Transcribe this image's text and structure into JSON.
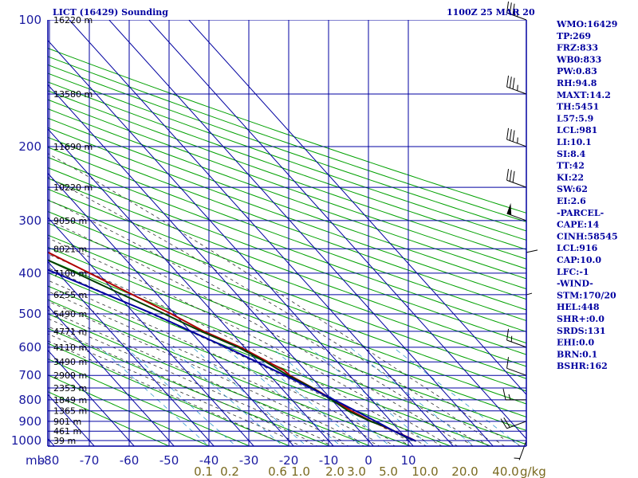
{
  "header": {
    "station": "LICT (16429) Sounding",
    "time": "1100Z 25 MAR 20"
  },
  "colors": {
    "isobar": "#0000a0",
    "isotherm": "#0000a0",
    "dry_adiabat": "#00a000",
    "moist_adiabat": "#303030",
    "mixing_ratio": "#3399cc",
    "temperature": "#b00000",
    "dewpoint": "#004000",
    "parcel": "#0000a0",
    "wind_barb": "#000000"
  },
  "chart_data": {
    "type": "line",
    "diagram": "skew-T log-P",
    "pressure_axis": {
      "unit_label": "mb",
      "ticks": [
        100,
        200,
        300,
        400,
        500,
        600,
        700,
        800,
        900,
        1000
      ],
      "range": [
        100,
        1050
      ],
      "scale": "log"
    },
    "temperature_axis": {
      "ticks": [
        -80,
        -70,
        -60,
        -50,
        -40,
        -30,
        -20,
        -10,
        0,
        10
      ],
      "range": [
        -80,
        10
      ]
    },
    "mixing_ratio_axis": {
      "unit_label": "g/kg",
      "ticks": [
        "0.1",
        "0.2",
        "0.6",
        "1.0",
        "2.0",
        "3.0",
        "5.0",
        "10.0",
        "20.0",
        "40.0"
      ]
    },
    "height_labels": [
      {
        "p": 100,
        "label": "16220 m"
      },
      {
        "p": 150,
        "label": "13580 m"
      },
      {
        "p": 200,
        "label": "11690 m"
      },
      {
        "p": 250,
        "label": "10220 m"
      },
      {
        "p": 300,
        "label": "9050 m"
      },
      {
        "p": 350,
        "label": "8021 m"
      },
      {
        "p": 400,
        "label": "7100 m"
      },
      {
        "p": 450,
        "label": "6255 m"
      },
      {
        "p": 500,
        "label": "5490 m"
      },
      {
        "p": 550,
        "label": "4771 m"
      },
      {
        "p": 600,
        "label": "4110 m"
      },
      {
        "p": 650,
        "label": "3490 m"
      },
      {
        "p": 700,
        "label": "2909 m"
      },
      {
        "p": 750,
        "label": "2353 m"
      },
      {
        "p": 800,
        "label": "1849 m"
      },
      {
        "p": 850,
        "label": "1365 m"
      },
      {
        "p": 900,
        "label": "901 m"
      },
      {
        "p": 950,
        "label": "461 m"
      },
      {
        "p": 1000,
        "label": "39 m"
      }
    ],
    "series": [
      {
        "name": "temperature",
        "points": [
          {
            "p": 1003,
            "t": 11.8
          },
          {
            "p": 980,
            "t": 10.6
          },
          {
            "p": 950,
            "t": 8.6
          },
          {
            "p": 925,
            "t": 6.9
          },
          {
            "p": 900,
            "t": 5.0
          },
          {
            "p": 850,
            "t": 2.4
          },
          {
            "p": 800,
            "t": 0.4
          },
          {
            "p": 750,
            "t": -2.1
          },
          {
            "p": 700,
            "t": -5.0
          },
          {
            "p": 680,
            "t": -5.3
          },
          {
            "p": 650,
            "t": -7.4
          },
          {
            "p": 600,
            "t": -11.0
          },
          {
            "p": 550,
            "t": -16.6
          },
          {
            "p": 500,
            "t": -20.8
          },
          {
            "p": 450,
            "t": -26.2
          },
          {
            "p": 400,
            "t": -32.1
          },
          {
            "p": 350,
            "t": -38.8
          },
          {
            "p": 300,
            "t": -46.4
          },
          {
            "p": 270,
            "t": -51.1
          },
          {
            "p": 255,
            "t": -53.0
          },
          {
            "p": 250,
            "t": -51.1
          },
          {
            "p": 230,
            "t": -51.2
          },
          {
            "p": 200,
            "t": -50.8
          },
          {
            "p": 170,
            "t": -50.5
          },
          {
            "p": 150,
            "t": -51.8
          },
          {
            "p": 130,
            "t": -52.0
          },
          {
            "p": 100,
            "t": -53.5
          }
        ]
      },
      {
        "name": "dewpoint",
        "points": [
          {
            "p": 1003,
            "t": 11.8
          },
          {
            "p": 980,
            "t": 10.0
          },
          {
            "p": 950,
            "t": 8.6
          },
          {
            "p": 925,
            "t": 7.2
          },
          {
            "p": 900,
            "t": 4.8
          },
          {
            "p": 850,
            "t": 1.6
          },
          {
            "p": 800,
            "t": 0.0
          },
          {
            "p": 750,
            "t": -2.2
          },
          {
            "p": 700,
            "t": -5.5
          },
          {
            "p": 680,
            "t": -6.4
          },
          {
            "p": 650,
            "t": -8.0
          },
          {
            "p": 600,
            "t": -11.6
          },
          {
            "p": 550,
            "t": -17.3
          },
          {
            "p": 500,
            "t": -22.5
          },
          {
            "p": 450,
            "t": -28.7
          },
          {
            "p": 400,
            "t": -35.4
          },
          {
            "p": 350,
            "t": -43.3
          },
          {
            "p": 300,
            "t": -49.9
          },
          {
            "p": 270,
            "t": -52.0
          },
          {
            "p": 257,
            "t": -54.0
          },
          {
            "p": 240,
            "t": -60.0
          },
          {
            "p": 225,
            "t": -70.0
          }
        ]
      },
      {
        "name": "parcel",
        "points": [
          {
            "p": 1003,
            "t": 11.8
          },
          {
            "p": 950,
            "t": 8.5
          },
          {
            "p": 916,
            "t": 7.0
          },
          {
            "p": 850,
            "t": 3.5
          },
          {
            "p": 800,
            "t": 0.6
          },
          {
            "p": 700,
            "t": -6.2
          },
          {
            "p": 600,
            "t": -14.6
          },
          {
            "p": 500,
            "t": -25.4
          },
          {
            "p": 400,
            "t": -40.5
          },
          {
            "p": 300,
            "t": -61.0
          },
          {
            "p": 250,
            "t": -74.0
          },
          {
            "p": 227,
            "t": -80.0
          }
        ]
      }
    ],
    "wind_profile": [
      {
        "p": 100,
        "dir": 290,
        "spd": 35
      },
      {
        "p": 150,
        "dir": 290,
        "spd": 35
      },
      {
        "p": 200,
        "dir": 290,
        "spd": 35
      },
      {
        "p": 250,
        "dir": 290,
        "spd": 30
      },
      {
        "p": 300,
        "dir": 290,
        "spd": 50
      },
      {
        "p": 400,
        "dir": 0,
        "spd": 10
      },
      {
        "p": 500,
        "dir": 0,
        "spd": 5
      },
      {
        "p": 600,
        "dir": 290,
        "spd": 15
      },
      {
        "p": 700,
        "dir": 290,
        "spd": 10
      },
      {
        "p": 800,
        "dir": 270,
        "spd": 15
      },
      {
        "p": 900,
        "dir": 250,
        "spd": 20
      },
      {
        "p": 1000,
        "dir": 200,
        "spd": 5
      }
    ]
  },
  "indices": [
    "WMO:16429",
    "TP:269",
    "FRZ:833",
    "WB0:833",
    "PW:0.83",
    "RH:94.8",
    "MAXT:14.2",
    "TH:5451",
    "L57:5.9",
    "LCL:981",
    "LI:10.1",
    "SI:8.4",
    "TT:42",
    "KI:22",
    "SW:62",
    "EI:2.6",
    "-PARCEL-",
    "CAPE:14",
    "CINH:58545",
    "LCL:916",
    "CAP:10.0",
    "LFC:-1",
    "-WIND-",
    "STM:170/20",
    "HEL:448",
    "SHR+:0.0",
    "SRDS:131",
    "EHI:0.0",
    "BRN:0.1",
    "BSHR:162"
  ]
}
